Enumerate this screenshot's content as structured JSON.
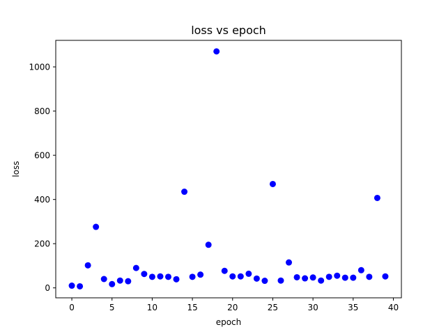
{
  "chart_data": {
    "type": "scatter",
    "title": "loss vs epoch",
    "xlabel": "epoch",
    "ylabel": "loss",
    "xlim": [
      -2,
      41
    ],
    "ylim": [
      -45,
      1120
    ],
    "xticks": [
      0,
      5,
      10,
      15,
      20,
      25,
      30,
      35,
      40
    ],
    "yticks": [
      0,
      200,
      400,
      600,
      800,
      1000
    ],
    "grid": false,
    "legend": "none",
    "marker_color": "#0000ff",
    "series": [
      {
        "x": [
          0,
          1,
          2,
          3,
          4,
          5,
          6,
          7,
          8,
          9,
          10,
          11,
          12,
          13,
          14,
          15,
          16,
          17,
          18,
          19,
          20,
          21,
          22,
          23,
          24,
          25,
          26,
          27,
          28,
          29,
          30,
          31,
          32,
          33,
          34,
          35,
          36,
          37,
          38,
          39
        ],
        "y": [
          10,
          7,
          102,
          276,
          40,
          17,
          33,
          30,
          90,
          63,
          50,
          52,
          50,
          39,
          435,
          50,
          60,
          195,
          1070,
          77,
          52,
          52,
          64,
          42,
          32,
          470,
          33,
          115,
          48,
          43,
          47,
          33,
          50,
          55,
          46,
          46,
          80,
          50,
          407,
          52
        ]
      }
    ]
  }
}
